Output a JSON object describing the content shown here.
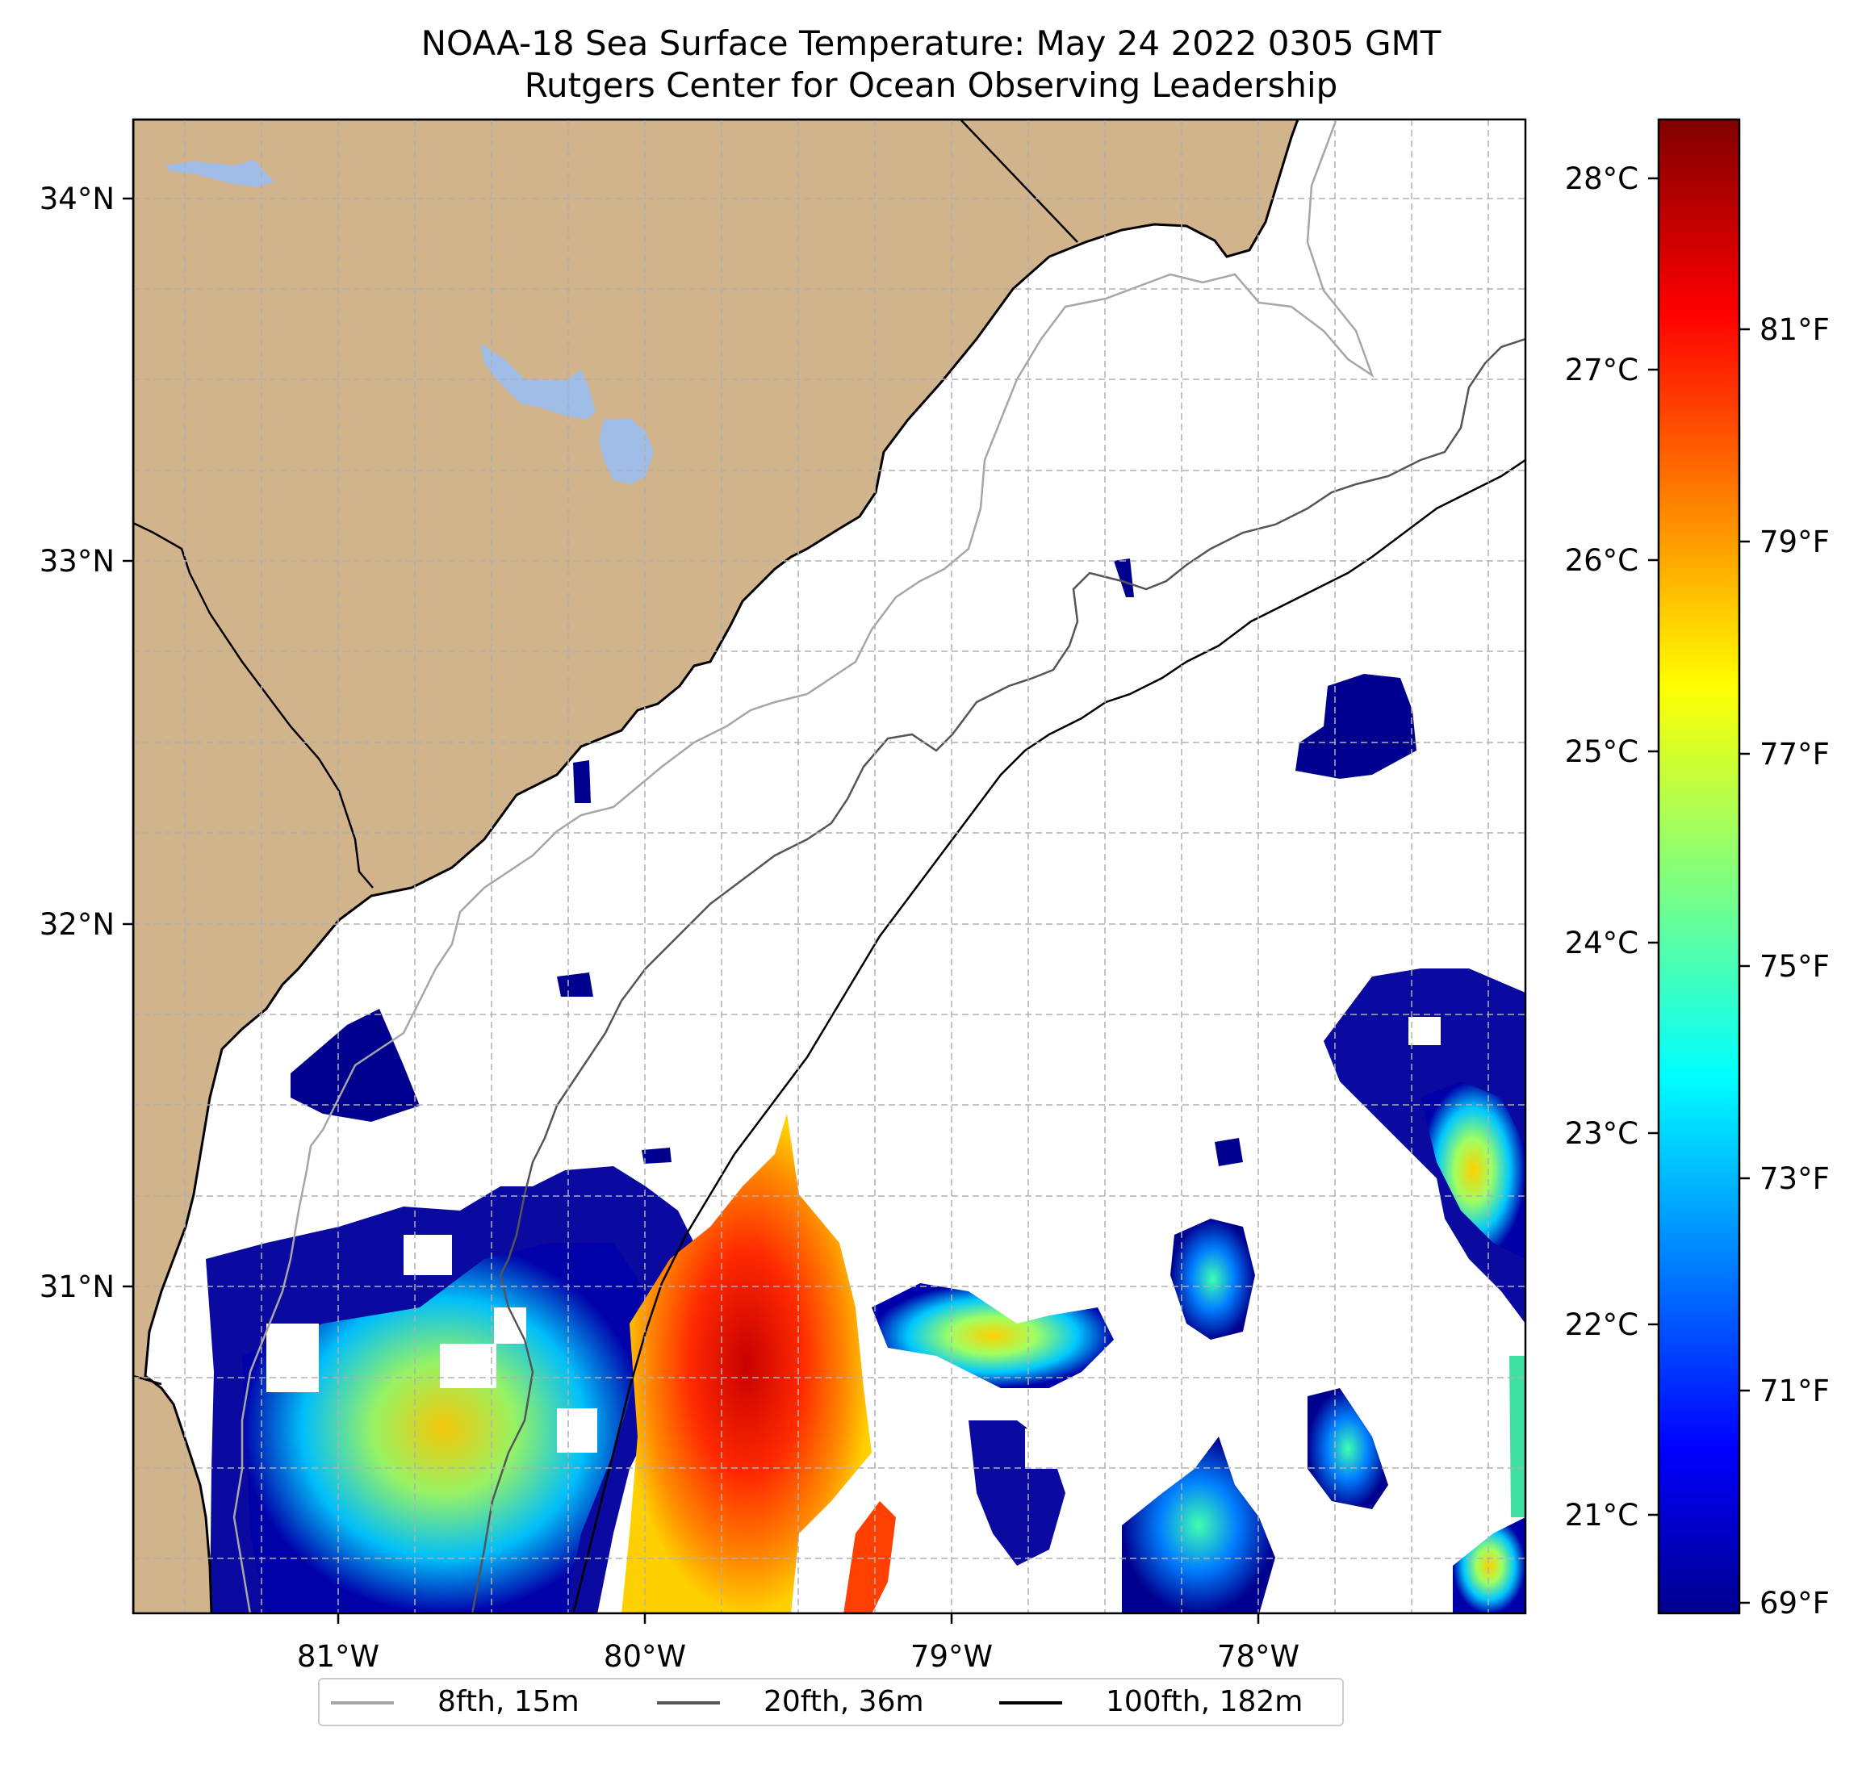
{
  "title": {
    "line1": "NOAA-18 Sea Surface Temperature: May 24 2022 0305 GMT",
    "line2": "Rutgers Center for Ocean Observing Leadership"
  },
  "map": {
    "lon_range": [
      -81.68,
      -77.14
    ],
    "lat_range": [
      30.08,
      34.22
    ],
    "lon_ticks": [
      "81°W",
      "80°W",
      "79°W",
      "78°W"
    ],
    "lat_ticks": [
      "34°N",
      "33°N",
      "32°N",
      "31°N"
    ],
    "land_color": "#d2b48c",
    "lake_color": "#9fbde6",
    "grid": true
  },
  "colorbar": {
    "colormap": "jet",
    "celsius_ticks": [
      "28°C",
      "27°C",
      "26°C",
      "25°C",
      "24°C",
      "23°C",
      "22°C",
      "21°C"
    ],
    "fahrenheit_ticks": [
      "81°F",
      "79°F",
      "77°F",
      "75°F",
      "73°F",
      "71°F",
      "69°F"
    ],
    "range_f": [
      68.8,
      82.9
    ]
  },
  "legend": {
    "items": [
      {
        "label": "8fth, 15m",
        "color": "#a6a6a6"
      },
      {
        "label": "20fth, 36m",
        "color": "#555555"
      },
      {
        "label": "100fth, 182m",
        "color": "#000000"
      }
    ]
  }
}
